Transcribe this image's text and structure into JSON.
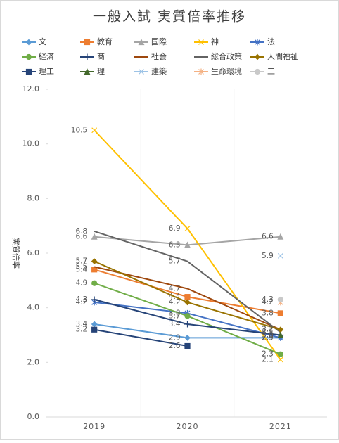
{
  "chart_data": {
    "type": "line",
    "title": "一般入試 実質倍率推移",
    "y_label": "実質倍率",
    "categories": [
      "2019",
      "2020",
      "2021"
    ],
    "ylim": [
      0,
      12
    ],
    "yticks": [
      {
        "value": 0,
        "label": "0.0"
      },
      {
        "value": 2,
        "label": "2.0"
      },
      {
        "value": 4,
        "label": "4.0"
      },
      {
        "value": 6,
        "label": "6.0"
      },
      {
        "value": 8,
        "label": "8.0"
      },
      {
        "value": 10,
        "label": "10.0"
      },
      {
        "value": 12,
        "label": "12.0"
      }
    ],
    "series": [
      {
        "name": "文",
        "color": "#5b9bd5",
        "marker": "diamond",
        "values": [
          3.4,
          2.9,
          2.9
        ],
        "value_labels": [
          "3.4",
          "2.9",
          "2.9"
        ]
      },
      {
        "name": "教育",
        "color": "#ed7d31",
        "marker": "square",
        "values": [
          5.4,
          4.4,
          3.8
        ],
        "value_labels": [
          "5.4",
          "4.4",
          "3.8"
        ]
      },
      {
        "name": "国際",
        "color": "#a5a5a5",
        "marker": "triangle",
        "values": [
          6.6,
          6.3,
          6.6
        ],
        "value_labels": [
          "6.6",
          "6.3",
          "6.6"
        ]
      },
      {
        "name": "神",
        "color": "#ffc000",
        "marker": "x",
        "values": [
          10.5,
          6.9,
          2.1
        ],
        "value_labels": [
          "10.5",
          "6.9",
          "2.1"
        ]
      },
      {
        "name": "法",
        "color": "#4472c4",
        "marker": "asterisk",
        "values": [
          4.2,
          3.8,
          2.9
        ],
        "value_labels": [
          "4.2",
          "3.8",
          "2.9"
        ]
      },
      {
        "name": "経済",
        "color": "#70ad47",
        "marker": "circle",
        "values": [
          4.9,
          3.7,
          2.3
        ],
        "value_labels": [
          "4.9",
          "3.7",
          "2.3"
        ]
      },
      {
        "name": "商",
        "color": "#264478",
        "marker": "plus",
        "values": [
          4.3,
          3.4,
          3.0
        ],
        "value_labels": [
          "4.3",
          "3.4",
          "3.0"
        ]
      },
      {
        "name": "社会",
        "color": "#9e480e",
        "marker": "none",
        "values": [
          5.5,
          4.7,
          3.2
        ],
        "value_labels": [
          "5.5",
          "4.7",
          "3.2"
        ]
      },
      {
        "name": "総合政策",
        "color": "#636363",
        "marker": "none",
        "values": [
          6.8,
          5.7,
          3.1
        ],
        "value_labels": [
          "6.8",
          "5.7",
          "3.1"
        ]
      },
      {
        "name": "人間福祉",
        "color": "#997300",
        "marker": "diamond",
        "values": [
          5.7,
          4.2,
          3.2
        ],
        "value_labels": [
          "5.7",
          "4.2",
          "3.2"
        ]
      },
      {
        "name": "理工",
        "color": "#264478",
        "marker": "square",
        "values": [
          3.2,
          2.6,
          null
        ],
        "value_labels": [
          "3.2",
          "2.6",
          null
        ]
      },
      {
        "name": "理",
        "color": "#43682b",
        "marker": "triangle",
        "values": [
          null,
          null,
          3.0
        ],
        "value_labels": [
          null,
          null,
          "3.0"
        ]
      },
      {
        "name": "建築",
        "color": "#9dc3e6",
        "marker": "x",
        "values": [
          null,
          null,
          5.9
        ],
        "value_labels": [
          null,
          null,
          "5.9"
        ]
      },
      {
        "name": "生命環境",
        "color": "#f4b183",
        "marker": "asterisk",
        "values": [
          null,
          null,
          4.2
        ],
        "value_labels": [
          null,
          null,
          "4.2"
        ]
      },
      {
        "name": "工",
        "color": "#c9c9c9",
        "marker": "circle",
        "values": [
          null,
          null,
          4.3
        ],
        "value_labels": [
          null,
          null,
          "4.3"
        ]
      }
    ]
  }
}
